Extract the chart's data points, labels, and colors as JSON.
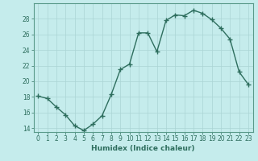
{
  "x": [
    0,
    1,
    2,
    3,
    4,
    5,
    6,
    7,
    8,
    9,
    10,
    11,
    12,
    13,
    14,
    15,
    16,
    17,
    18,
    19,
    20,
    21,
    22,
    23
  ],
  "y": [
    18.1,
    17.8,
    16.7,
    15.7,
    14.3,
    13.7,
    14.5,
    15.6,
    18.3,
    21.5,
    22.2,
    26.2,
    26.2,
    23.8,
    27.8,
    28.5,
    28.4,
    29.1,
    28.7,
    27.9,
    26.8,
    25.4,
    21.2,
    19.6
  ],
  "line_color": "#2e6e5e",
  "marker": "+",
  "markersize": 4,
  "linewidth": 1.0,
  "bg_color": "#c5ecec",
  "grid_color_major": "#aad4d4",
  "grid_color_minor": "#aad4d4",
  "xlabel": "Humidex (Indice chaleur)",
  "ylim": [
    13.5,
    30.0
  ],
  "xlim": [
    -0.5,
    23.5
  ],
  "yticks": [
    14,
    16,
    18,
    20,
    22,
    24,
    26,
    28
  ],
  "xticks": [
    0,
    1,
    2,
    3,
    4,
    5,
    6,
    7,
    8,
    9,
    10,
    11,
    12,
    13,
    14,
    15,
    16,
    17,
    18,
    19,
    20,
    21,
    22,
    23
  ],
  "tick_fontsize": 5.5,
  "xlabel_fontsize": 6.5,
  "axis_color": "#2e6e5e",
  "tick_color": "#2e6e5e",
  "spine_color": "#5a9a8a"
}
